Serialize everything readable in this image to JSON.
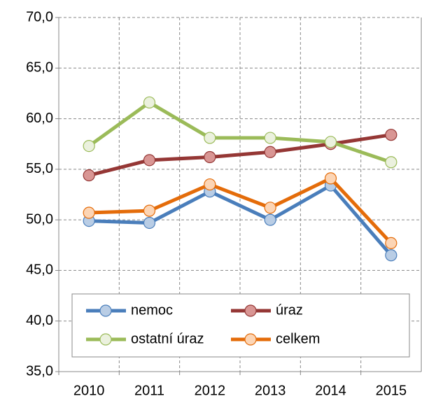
{
  "chart_data": {
    "type": "line",
    "categories": [
      "2010",
      "2011",
      "2012",
      "2013",
      "2014",
      "2015"
    ],
    "series": [
      {
        "name": "nemoc",
        "color": "#4a7ebb",
        "marker_color": "#b9cde5",
        "values": [
          49.9,
          49.7,
          52.8,
          50.0,
          53.4,
          46.5
        ]
      },
      {
        "name": "úraz",
        "color": "#953735",
        "marker_color": "#d99694",
        "values": [
          54.4,
          55.9,
          56.2,
          56.7,
          57.5,
          58.4
        ]
      },
      {
        "name": "ostatní úraz",
        "color": "#9bbb59",
        "marker_color": "#ebf1de",
        "values": [
          57.3,
          61.6,
          58.1,
          58.1,
          57.7,
          55.7
        ]
      },
      {
        "name": "celkem",
        "color": "#e46c0a",
        "marker_color": "#fcd5b5",
        "values": [
          50.7,
          50.9,
          53.5,
          51.2,
          54.1,
          47.7
        ]
      }
    ],
    "ylim": [
      35,
      70
    ],
    "yticks": [
      {
        "value": 35,
        "label": "35,0"
      },
      {
        "value": 40,
        "label": "40,0"
      },
      {
        "value": 45,
        "label": "45,0"
      },
      {
        "value": 50,
        "label": "50,0"
      },
      {
        "value": 55,
        "label": "55,0"
      },
      {
        "value": 60,
        "label": "60,0"
      },
      {
        "value": 65,
        "label": "65,0"
      },
      {
        "value": 70,
        "label": "70,0"
      }
    ],
    "grid": true,
    "legend": "bottom"
  }
}
